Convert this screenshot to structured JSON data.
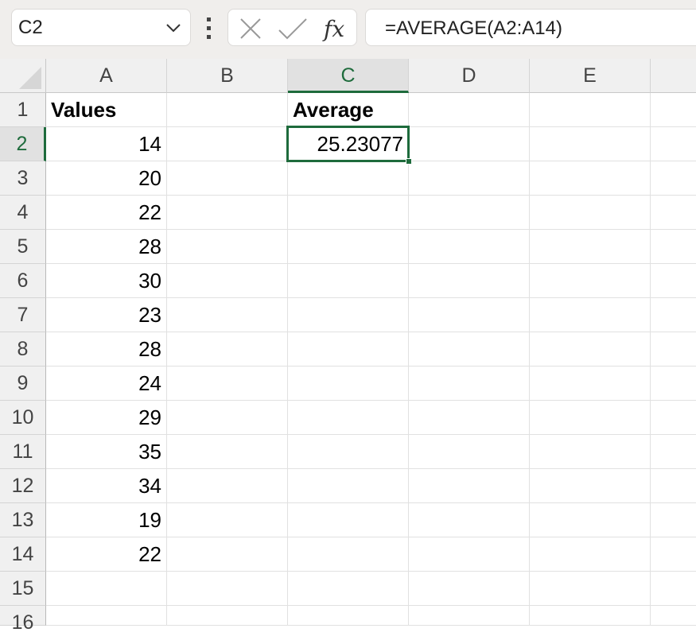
{
  "name_box": {
    "value": "C2",
    "icon": "chevron-down-icon"
  },
  "formula_bar": {
    "value": "=AVERAGE(A2:A14)",
    "cancel_icon": "x-icon",
    "enter_icon": "check-icon",
    "function_icon": "fx-icon"
  },
  "columns": [
    "A",
    "B",
    "C",
    "D",
    "E",
    ""
  ],
  "rows": [
    "1",
    "2",
    "3",
    "4",
    "5",
    "6",
    "7",
    "8",
    "9",
    "10",
    "11",
    "12",
    "13",
    "14",
    "15",
    "16"
  ],
  "selected_cell": "C2",
  "accent_color": "#1e6b3c",
  "cells": {
    "A1": "Values",
    "C1": "Average",
    "A2": "14",
    "A3": "20",
    "A4": "22",
    "A5": "28",
    "A6": "30",
    "A7": "23",
    "A8": "28",
    "A9": "24",
    "A10": "29",
    "A11": "35",
    "A12": "34",
    "A13": "19",
    "A14": "22",
    "C2": "25.23077"
  }
}
